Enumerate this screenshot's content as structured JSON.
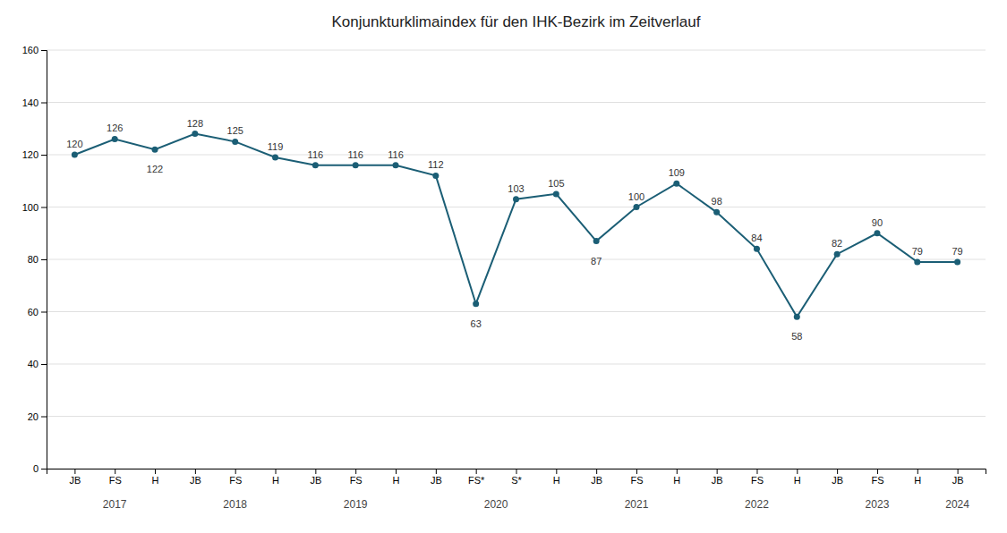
{
  "chart_data": {
    "type": "line",
    "title": "Konjunkturklimaindex für den IHK-Bezirk im Zeitverlauf",
    "categories": [
      "JB",
      "FS",
      "H",
      "JB",
      "FS",
      "H",
      "JB",
      "FS",
      "H",
      "JB",
      "FS*",
      "S*",
      "H",
      "JB",
      "FS",
      "H",
      "JB",
      "FS",
      "H",
      "JB",
      "FS",
      "H",
      "JB"
    ],
    "values": [
      120,
      126,
      122,
      128,
      125,
      119,
      116,
      116,
      116,
      112,
      63,
      103,
      105,
      87,
      100,
      109,
      98,
      84,
      58,
      82,
      90,
      79,
      79
    ],
    "color": "#1b5e75",
    "marker": "circle",
    "data_labels": true,
    "ylim": [
      0,
      160
    ],
    "yticks": [
      0,
      20,
      40,
      60,
      80,
      100,
      120,
      140,
      160
    ],
    "grid": true,
    "annotations": [
      {
        "text": "2017",
        "x": 1
      },
      {
        "text": "2018",
        "x": 4
      },
      {
        "text": "2019",
        "x": 7
      },
      {
        "text": "2020",
        "x": 10.5
      },
      {
        "text": "2021",
        "x": 14
      },
      {
        "text": "2022",
        "x": 17
      },
      {
        "text": "2023",
        "x": 20
      },
      {
        "text": "2024",
        "x": 22
      }
    ]
  }
}
